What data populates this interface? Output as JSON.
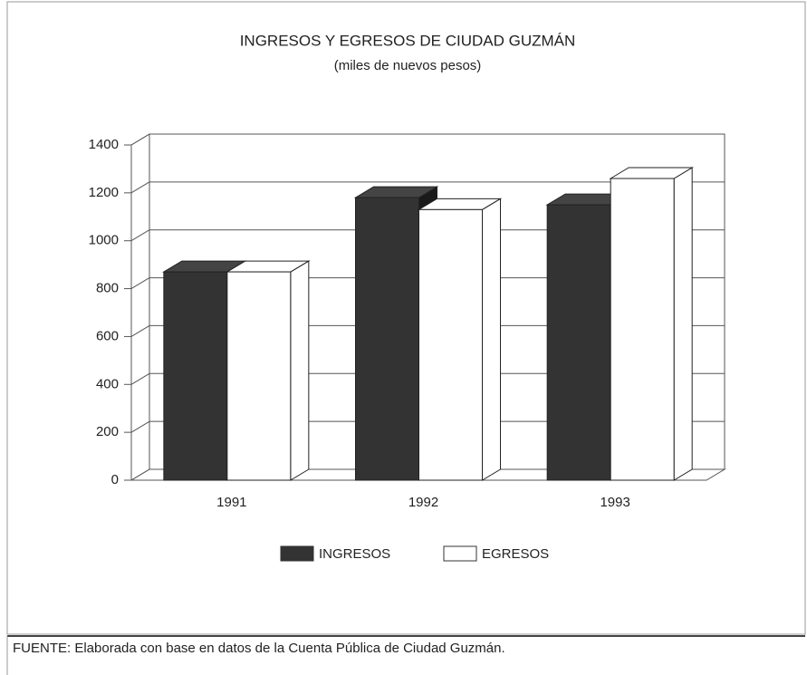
{
  "chart_data": {
    "type": "bar3d",
    "title": "INGRESOS Y EGRESOS DE CIUDAD GUZMÁN",
    "subtitle": "(miles de nuevos pesos)",
    "categories": [
      "1991",
      "1992",
      "1993"
    ],
    "series": [
      {
        "name": "INGRESOS",
        "color": "#333333",
        "values": [
          870,
          1180,
          1150
        ]
      },
      {
        "name": "EGRESOS",
        "color": "#ffffff",
        "values": [
          870,
          1130,
          1260
        ]
      }
    ],
    "ylim": [
      0,
      1400
    ],
    "yticks": [
      0,
      200,
      400,
      600,
      800,
      1000,
      1200,
      1400
    ],
    "grid": true,
    "legend": "bottom",
    "source": "FUENTE: Elaborada con base en datos de la Cuenta Pública de Ciudad Guzmán."
  }
}
